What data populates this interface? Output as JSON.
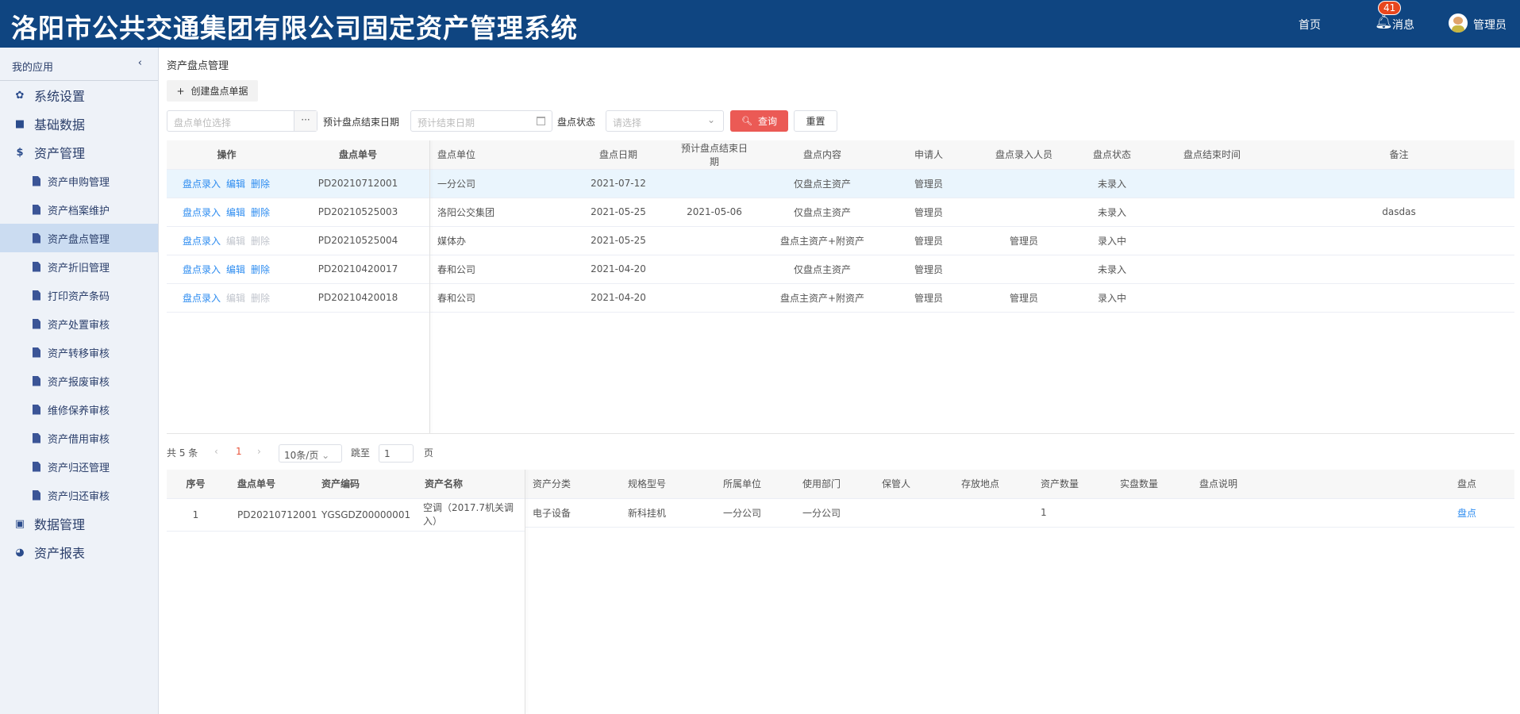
{
  "header": {
    "title": "洛阳市公共交通集团有限公司固定资产管理系统",
    "home": "首页",
    "messages": "消息",
    "message_count": "41",
    "user": "管理员"
  },
  "sidebar": {
    "title": "我的应用",
    "collapse_icon": "chevron-left-icon",
    "items": [
      {
        "label": "系统设置",
        "icon": "gear-icon"
      },
      {
        "label": "基础数据",
        "icon": "copy-icon"
      },
      {
        "label": "资产管理",
        "icon": "dollar-icon"
      },
      {
        "label": "资产申购管理",
        "icon": "file-icon"
      },
      {
        "label": "资产档案维护",
        "icon": "file-icon"
      },
      {
        "label": "资产盘点管理",
        "icon": "file-icon",
        "selected": true
      },
      {
        "label": "资产折旧管理",
        "icon": "file-icon"
      },
      {
        "label": "打印资产条码",
        "icon": "file-icon"
      },
      {
        "label": "资产处置审核",
        "icon": "file-icon"
      },
      {
        "label": "资产转移审核",
        "icon": "file-icon"
      },
      {
        "label": "资产报废审核",
        "icon": "file-icon"
      },
      {
        "label": "维修保养审核",
        "icon": "file-icon"
      },
      {
        "label": "资产借用审核",
        "icon": "file-icon"
      },
      {
        "label": "资产归还管理",
        "icon": "file-icon"
      },
      {
        "label": "资产归还审核",
        "icon": "file-icon"
      },
      {
        "label": "数据管理",
        "icon": "archive-icon"
      },
      {
        "label": "资产报表",
        "icon": "pie-chart-icon"
      }
    ]
  },
  "main": {
    "breadcrumb": "资产盘点管理",
    "create_label": "创建盘点单据",
    "filters": {
      "unit_placeholder": "盘点单位选择",
      "end_date_label": "预计盘点结束日期",
      "end_date_placeholder": "预计结束日期",
      "status_label": "盘点状态",
      "status_placeholder": "请选择",
      "query": "查询",
      "reset": "重置"
    },
    "table": {
      "columns": [
        "操作",
        "盘点单号",
        "盘点单位",
        "盘点日期",
        "预计盘点结束日期",
        "盘点内容",
        "申请人",
        "盘点录入人员",
        "盘点状态",
        "盘点结束时间",
        "备注"
      ],
      "action_labels": [
        "盘点录入",
        "编辑",
        "删除"
      ],
      "rows": [
        {
          "no": "PD20210712001",
          "unit": "一分公司",
          "date": "2021-07-12",
          "end": "",
          "content": "仅盘点主资产",
          "applicant": "管理员",
          "entry": "",
          "status": "未录入",
          "finish": "",
          "note": "",
          "editable": true
        },
        {
          "no": "PD20210525003",
          "unit": "洛阳公交集团",
          "date": "2021-05-25",
          "end": "2021-05-06",
          "content": "仅盘点主资产",
          "applicant": "管理员",
          "entry": "",
          "status": "未录入",
          "finish": "",
          "note": "dasdas",
          "editable": true
        },
        {
          "no": "PD20210525004",
          "unit": "媒体办",
          "date": "2021-05-25",
          "end": "",
          "content": "盘点主资产+附资产",
          "applicant": "管理员",
          "entry": "管理员",
          "status": "录入中",
          "finish": "",
          "note": "",
          "editable": false
        },
        {
          "no": "PD20210420017",
          "unit": "春和公司",
          "date": "2021-04-20",
          "end": "",
          "content": "仅盘点主资产",
          "applicant": "管理员",
          "entry": "",
          "status": "未录入",
          "finish": "",
          "note": "",
          "editable": true
        },
        {
          "no": "PD20210420018",
          "unit": "春和公司",
          "date": "2021-04-20",
          "end": "",
          "content": "盘点主资产+附资产",
          "applicant": "管理员",
          "entry": "管理员",
          "status": "录入中",
          "finish": "",
          "note": "",
          "editable": false
        }
      ]
    },
    "pagination": {
      "total": "共 5 条",
      "current": "1",
      "page_size": "10条/页",
      "goto_label": "跳至",
      "goto_value": "1",
      "page_suffix": "页"
    },
    "detail": {
      "columns": [
        "序号",
        "盘点单号",
        "资产编码",
        "资产名称",
        "资产分类",
        "规格型号",
        "所属单位",
        "使用部门",
        "保管人",
        "存放地点",
        "资产数量",
        "实盘数量",
        "盘点说明",
        "盘点"
      ],
      "rows": [
        {
          "idx": "1",
          "no": "PD20210712001",
          "code": "YGSGDZ00000001",
          "name": "空调（2017.7机关调入）",
          "category": "电子设备",
          "model": "新科挂机",
          "owner_unit": "一分公司",
          "dept": "一分公司",
          "keeper": "",
          "location": "",
          "qty": "1",
          "actual": "",
          "remark": "",
          "action": "盘点"
        }
      ]
    }
  },
  "colors": {
    "header": "#0f4581",
    "accent": "#eb5a55",
    "link": "#2d8cf0",
    "selected": "#cbdcf1"
  }
}
